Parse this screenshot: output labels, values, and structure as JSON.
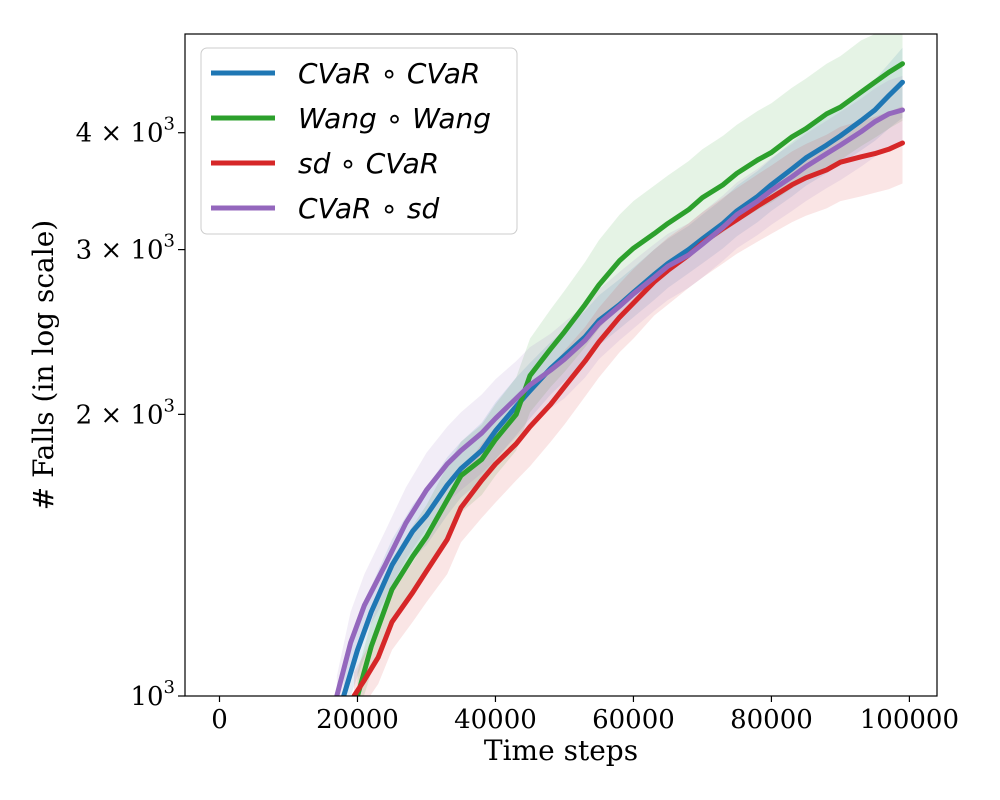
{
  "chart_data": {
    "type": "line",
    "title": "",
    "xlabel": "Time steps",
    "ylabel": "# Falls (in log scale)",
    "xlim": [
      -5000,
      104000
    ],
    "ylim": [
      1000,
      5100
    ],
    "yscale": "log",
    "x_ticks": [
      0,
      20000,
      40000,
      60000,
      80000,
      100000
    ],
    "x_tick_labels": [
      "0",
      "20000",
      "40000",
      "60000",
      "80000",
      "100000"
    ],
    "y_ticks": [
      {
        "value": 1000,
        "base": "10",
        "exp": "3"
      },
      {
        "value": 2000,
        "base": "2 × 10",
        "exp": "3"
      },
      {
        "value": 3000,
        "base": "3 × 10",
        "exp": "3"
      },
      {
        "value": 4000,
        "base": "4 × 10",
        "exp": "3"
      }
    ],
    "legend_position": "upper-left",
    "series": [
      {
        "name": "CVaR ∘ CVaR",
        "color": "#1f77b4",
        "x": [
          18000,
          20000,
          22000,
          25000,
          28000,
          30000,
          33000,
          35000,
          38000,
          40000,
          43000,
          45000,
          48000,
          50000,
          53000,
          55000,
          58000,
          60000,
          63000,
          65000,
          68000,
          70000,
          73000,
          75000,
          78000,
          80000,
          83000,
          85000,
          88000,
          90000,
          93000,
          95000,
          97000,
          99000
        ],
        "y": [
          1000,
          1120,
          1230,
          1380,
          1500,
          1560,
          1680,
          1750,
          1830,
          1920,
          2040,
          2120,
          2240,
          2310,
          2420,
          2520,
          2620,
          2700,
          2820,
          2900,
          3000,
          3080,
          3200,
          3300,
          3420,
          3520,
          3660,
          3760,
          3880,
          3970,
          4120,
          4230,
          4380,
          4530
        ],
        "lower": [
          950,
          1050,
          1150,
          1290,
          1400,
          1450,
          1560,
          1630,
          1700,
          1790,
          1900,
          1980,
          2100,
          2170,
          2270,
          2370,
          2470,
          2540,
          2650,
          2730,
          2830,
          2900,
          3010,
          3100,
          3210,
          3300,
          3420,
          3510,
          3620,
          3700,
          3830,
          3920,
          4040,
          4150
        ],
        "upper": [
          1050,
          1190,
          1310,
          1470,
          1600,
          1670,
          1800,
          1870,
          1960,
          2060,
          2190,
          2270,
          2390,
          2460,
          2580,
          2680,
          2790,
          2870,
          3000,
          3080,
          3180,
          3270,
          3400,
          3510,
          3640,
          3750,
          3910,
          4020,
          4160,
          4260,
          4430,
          4560,
          4740,
          4930
        ]
      },
      {
        "name": "Wang ∘ Wang",
        "color": "#2ca02c",
        "x": [
          20000,
          22000,
          25000,
          28000,
          30000,
          33000,
          35000,
          38000,
          40000,
          43000,
          45000,
          48000,
          50000,
          53000,
          55000,
          58000,
          60000,
          63000,
          65000,
          68000,
          70000,
          73000,
          75000,
          78000,
          80000,
          83000,
          85000,
          88000,
          90000,
          93000,
          95000,
          97000,
          99000
        ],
        "y": [
          1000,
          1130,
          1300,
          1410,
          1480,
          1620,
          1720,
          1790,
          1880,
          2000,
          2200,
          2350,
          2450,
          2620,
          2750,
          2920,
          3010,
          3120,
          3200,
          3310,
          3410,
          3520,
          3620,
          3740,
          3810,
          3960,
          4040,
          4190,
          4260,
          4420,
          4530,
          4640,
          4740
        ],
        "lower": [
          950,
          1060,
          1200,
          1300,
          1360,
          1480,
          1570,
          1640,
          1720,
          1830,
          2010,
          2140,
          2220,
          2360,
          2470,
          2610,
          2680,
          2780,
          2850,
          2950,
          3030,
          3130,
          3210,
          3310,
          3370,
          3490,
          3560,
          3680,
          3740,
          3870,
          3950,
          4040,
          4120
        ],
        "upper": [
          1060,
          1200,
          1400,
          1520,
          1600,
          1760,
          1870,
          1950,
          2050,
          2190,
          2410,
          2590,
          2710,
          2910,
          3070,
          3270,
          3380,
          3510,
          3600,
          3730,
          3840,
          3970,
          4080,
          4220,
          4300,
          4470,
          4570,
          4740,
          4830,
          5020,
          5100,
          5100,
          5100
        ]
      },
      {
        "name": "sd ∘ CVaR",
        "color": "#d62728",
        "x": [
          19500,
          21000,
          23000,
          25000,
          28000,
          30000,
          33000,
          35000,
          38000,
          40000,
          43000,
          45000,
          48000,
          50000,
          53000,
          55000,
          58000,
          60000,
          63000,
          65000,
          68000,
          70000,
          73000,
          75000,
          78000,
          80000,
          83000,
          85000,
          88000,
          90000,
          93000,
          95000,
          97000,
          99000
        ],
        "y": [
          1000,
          1040,
          1100,
          1200,
          1290,
          1360,
          1470,
          1590,
          1700,
          1770,
          1860,
          1940,
          2050,
          2140,
          2280,
          2390,
          2540,
          2630,
          2770,
          2850,
          2960,
          3050,
          3160,
          3230,
          3340,
          3410,
          3520,
          3580,
          3650,
          3720,
          3770,
          3800,
          3840,
          3900
        ],
        "lower": [
          950,
          980,
          1030,
          1120,
          1200,
          1260,
          1350,
          1460,
          1550,
          1610,
          1700,
          1760,
          1870,
          1950,
          2090,
          2190,
          2330,
          2410,
          2550,
          2620,
          2730,
          2800,
          2900,
          2970,
          3060,
          3120,
          3210,
          3260,
          3320,
          3380,
          3420,
          3450,
          3480,
          3530
        ],
        "upper": [
          1060,
          1110,
          1180,
          1290,
          1390,
          1470,
          1600,
          1730,
          1860,
          1940,
          2030,
          2120,
          2240,
          2340,
          2480,
          2600,
          2760,
          2860,
          3000,
          3090,
          3200,
          3290,
          3410,
          3490,
          3610,
          3690,
          3820,
          3890,
          3980,
          4060,
          4120,
          4160,
          4210,
          4270
        ]
      },
      {
        "name": "CVaR ∘ sd",
        "color": "#9467bd",
        "x": [
          17000,
          19000,
          21000,
          24000,
          27000,
          30000,
          33000,
          35000,
          38000,
          40000,
          43000,
          45000,
          48000,
          50000,
          53000,
          55000,
          58000,
          60000,
          63000,
          65000,
          68000,
          70000,
          73000,
          75000,
          78000,
          80000,
          83000,
          85000,
          88000,
          90000,
          93000,
          95000,
          97000,
          99000
        ],
        "y": [
          1000,
          1140,
          1250,
          1380,
          1530,
          1660,
          1770,
          1830,
          1910,
          1980,
          2080,
          2150,
          2230,
          2290,
          2400,
          2500,
          2610,
          2690,
          2800,
          2880,
          2960,
          3040,
          3170,
          3270,
          3380,
          3470,
          3590,
          3680,
          3800,
          3880,
          4010,
          4110,
          4190,
          4230
        ],
        "lower": [
          950,
          1060,
          1160,
          1270,
          1400,
          1510,
          1610,
          1660,
          1730,
          1790,
          1890,
          1950,
          2030,
          2080,
          2190,
          2290,
          2400,
          2470,
          2580,
          2650,
          2730,
          2800,
          2920,
          3010,
          3110,
          3190,
          3300,
          3380,
          3490,
          3560,
          3680,
          3770,
          3840,
          3880
        ],
        "upper": [
          1050,
          1230,
          1350,
          1500,
          1670,
          1820,
          1940,
          2010,
          2100,
          2180,
          2280,
          2360,
          2440,
          2510,
          2620,
          2720,
          2840,
          2920,
          3040,
          3120,
          3200,
          3290,
          3430,
          3540,
          3660,
          3760,
          3890,
          3990,
          4120,
          4210,
          4350,
          4460,
          4550,
          4600
        ]
      }
    ]
  }
}
